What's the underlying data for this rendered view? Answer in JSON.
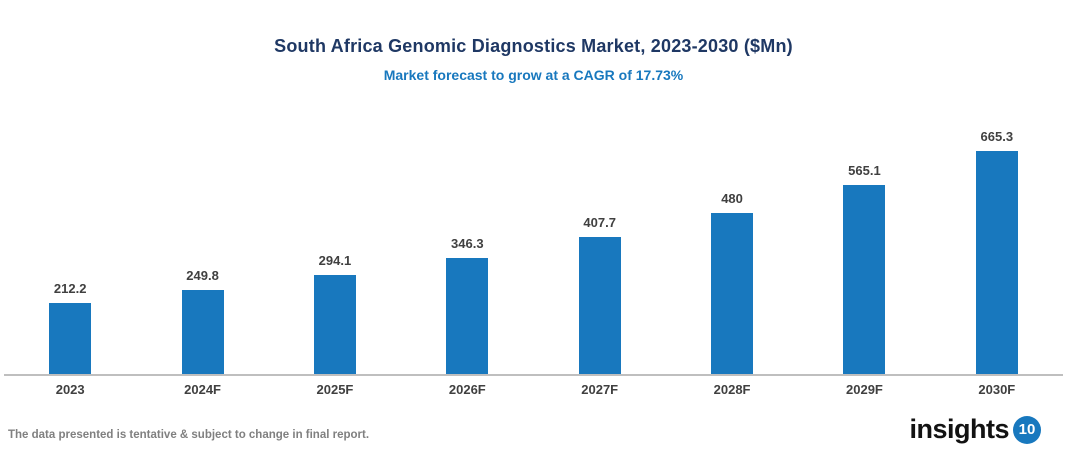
{
  "header": {
    "title": "South Africa Genomic Diagnostics Market, 2023-2030 ($Mn)",
    "subtitle": "Market forecast to grow at a CAGR of 17.73%"
  },
  "chart_data": {
    "type": "bar",
    "title": "South Africa Genomic Diagnostics Market, 2023-2030 ($Mn)",
    "subtitle": "Market forecast to grow at a CAGR of 17.73%",
    "categories": [
      "2023",
      "2024F",
      "2025F",
      "2026F",
      "2027F",
      "2028F",
      "2029F",
      "2030F"
    ],
    "values": [
      212.2,
      249.8,
      294.1,
      346.3,
      407.7,
      480,
      565.1,
      665.3
    ],
    "value_labels": [
      "212.2",
      "249.8",
      "294.1",
      "346.3",
      "407.7",
      "480",
      "565.1",
      "665.3"
    ],
    "xlabel": "",
    "ylabel": "",
    "ylim": [
      0,
      700
    ],
    "grid": false,
    "legend": "none",
    "bar_color": "#1878be"
  },
  "footer": {
    "disclaimer": "The data presented is tentative & subject to change in final report."
  },
  "logo": {
    "text": "insights",
    "badge": "10"
  },
  "colors": {
    "title": "#1f3864",
    "subtitle": "#1878be",
    "bar": "#1878be",
    "axis_line": "#bfbfbf",
    "data_label": "#404040",
    "footer_text": "#808080",
    "logo_badge": "#1878be"
  }
}
